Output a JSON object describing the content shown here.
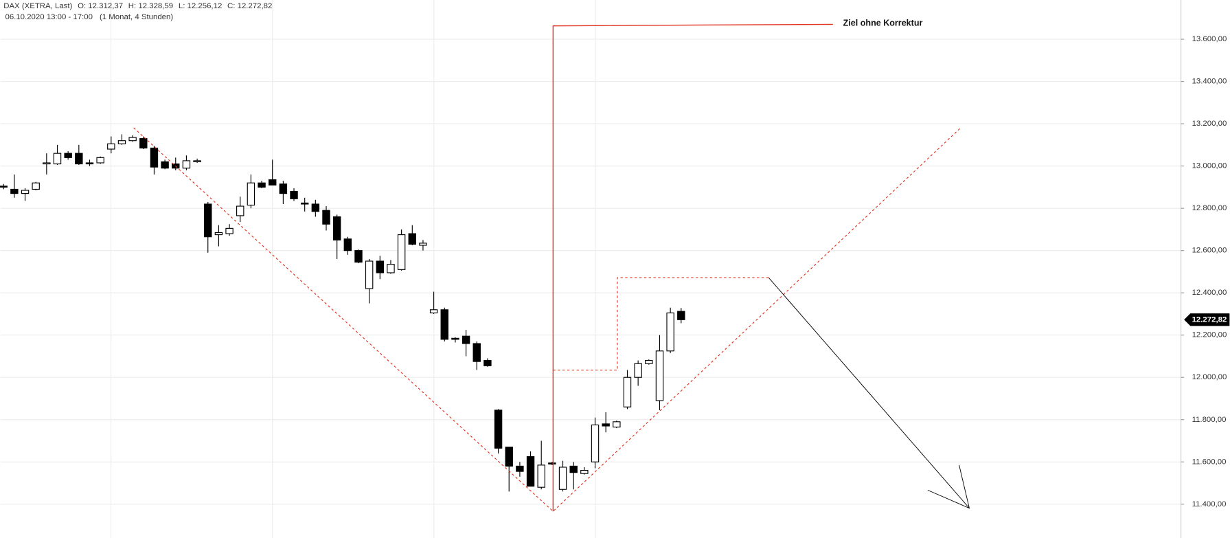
{
  "chart_data": {
    "type": "candlestick",
    "title": "DAX (XETRA, Last)",
    "info": [
      "O: 12.312,37",
      "H: 12.328,59",
      "L: 12.256,12",
      "C: 12.272,82"
    ],
    "subtitle": "06.10.2020 13:00 - 17:00",
    "period": "(1 Monat, 4 Stunden)",
    "annotation": "Ziel ohne Korrektur",
    "last_price": {
      "value": 12272.82,
      "label": "12.272,82"
    },
    "ylim": [
      11240,
      13785.5
    ],
    "yticks": [
      {
        "value": 11400,
        "label": "11.400,00"
      },
      {
        "value": 11600,
        "label": "11.600,00"
      },
      {
        "value": 11800,
        "label": "11.800,00"
      },
      {
        "value": 12000,
        "label": "12.000,00"
      },
      {
        "value": 12200,
        "label": "12.200,00"
      },
      {
        "value": 12400,
        "label": "12.400,00"
      },
      {
        "value": 12600,
        "label": "12.600,00"
      },
      {
        "value": 12800,
        "label": "12.800,00"
      },
      {
        "value": 13000,
        "label": "13.000,00"
      },
      {
        "value": 13200,
        "label": "13.200,00"
      },
      {
        "value": 13400,
        "label": "13.400,00"
      },
      {
        "value": 13600,
        "label": "13.600,00"
      }
    ],
    "grid": true,
    "up_color": "#ffffff",
    "down_color": "#000000",
    "categories": [
      null,
      null,
      null,
      null,
      null,
      null,
      null,
      null,
      null,
      null,
      null,
      null,
      null,
      null,
      null,
      null,
      null,
      null,
      null,
      null,
      null,
      null,
      null,
      null,
      null,
      null,
      null,
      null,
      null,
      null,
      null,
      null,
      null,
      null,
      null,
      null,
      null,
      null,
      null,
      null,
      null,
      null,
      null,
      null,
      null,
      null,
      null,
      null,
      null,
      null,
      null,
      null,
      null,
      null,
      null,
      null,
      null,
      null,
      null,
      null,
      null,
      null,
      null,
      null
    ],
    "open": [
      12905,
      12890,
      12870,
      12890,
      13010,
      13010,
      13060,
      13060,
      13015,
      13015,
      13080,
      13105,
      13120,
      13130,
      13085,
      13020,
      13010,
      12990,
      13020,
      12820,
      12675,
      12680,
      12765,
      12815,
      12920,
      12935,
      12915,
      12880,
      12825,
      12820,
      12790,
      12760,
      12655,
      12600,
      12420,
      12550,
      12495,
      12510,
      12680,
      12625,
      12305,
      12320,
      12185,
      12195,
      12160,
      12080,
      11845,
      11670,
      11580,
      11625,
      11480,
      11595,
      11470,
      11580,
      11545,
      11600,
      11780,
      11765,
      11860,
      12000,
      12065,
      11890,
      12125,
      12312.37
    ],
    "high": [
      12915,
      12960,
      12895,
      12925,
      13060,
      13100,
      13070,
      13100,
      13030,
      13045,
      13140,
      13150,
      13145,
      13140,
      13095,
      13030,
      13040,
      13050,
      13035,
      12830,
      12720,
      12725,
      12855,
      12960,
      12930,
      13030,
      12930,
      12895,
      12850,
      12840,
      12810,
      12770,
      12665,
      12605,
      12560,
      12575,
      12555,
      12700,
      12720,
      12650,
      12405,
      12330,
      12190,
      12225,
      12170,
      12090,
      11850,
      11670,
      11600,
      11650,
      11700,
      11600,
      11605,
      11600,
      11575,
      11810,
      11835,
      11795,
      12035,
      12080,
      12085,
      12200,
      12330,
      12328.59
    ],
    "low": [
      12890,
      12850,
      12835,
      12885,
      12960,
      13005,
      13030,
      13005,
      13000,
      13010,
      13060,
      13100,
      13115,
      13080,
      12960,
      12985,
      12980,
      12980,
      13015,
      12590,
      12620,
      12670,
      12735,
      12800,
      12895,
      12910,
      12820,
      12835,
      12785,
      12760,
      12695,
      12560,
      12580,
      12540,
      12350,
      12465,
      12490,
      12505,
      12625,
      12600,
      12300,
      12170,
      12165,
      12100,
      12035,
      12050,
      11640,
      11460,
      11530,
      11485,
      11470,
      11585,
      11460,
      11470,
      11540,
      11570,
      11740,
      11760,
      11850,
      11960,
      12060,
      11845,
      12115,
      12256.12
    ],
    "close": [
      12900,
      12870,
      12885,
      12920,
      13015,
      13060,
      13040,
      13010,
      13010,
      13040,
      13105,
      13120,
      13135,
      13085,
      12995,
      12990,
      12990,
      13025,
      13025,
      12665,
      12685,
      12705,
      12810,
      12920,
      12900,
      12910,
      12870,
      12845,
      12820,
      12785,
      12725,
      12650,
      12600,
      12545,
      12550,
      12495,
      12535,
      12675,
      12630,
      12635,
      12320,
      12180,
      12180,
      12160,
      12075,
      12055,
      11665,
      11580,
      11555,
      11485,
      11585,
      11590,
      11575,
      11550,
      11560,
      11775,
      11770,
      11790,
      12000,
      12065,
      12080,
      12125,
      12305,
      12272.82
    ]
  }
}
